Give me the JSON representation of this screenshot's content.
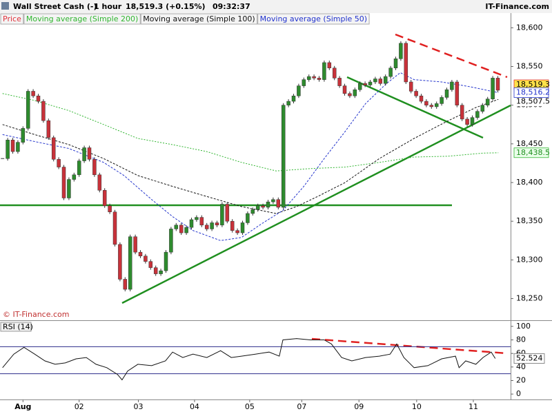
{
  "header": {
    "instrument": "Wall Street Cash (-)",
    "interval": "1 hour",
    "quote": "18,519.3 (+0.15%)",
    "time": "09:32:37",
    "brand": "IT-Finance.com",
    "watermark": "© IT-Finance.com"
  },
  "chart_data": [
    {
      "type": "candlestick",
      "xlim": [
        -0.5,
        99.5
      ],
      "ylim": [
        18222,
        18619
      ],
      "yticks": [
        {
          "value": 18250,
          "label": "18,250"
        },
        {
          "value": 18300,
          "label": "18,300"
        },
        {
          "value": 18350,
          "label": "18,350"
        },
        {
          "value": 18400,
          "label": "18,400"
        },
        {
          "value": 18450,
          "label": "18,450"
        },
        {
          "value": 18500,
          "label": "18,500"
        },
        {
          "value": 18550,
          "label": "18,550"
        },
        {
          "value": 18600,
          "label": "18,600"
        }
      ],
      "series": [
        {
          "name": "Price",
          "color": "#e0303a",
          "last_label": "18,519.3",
          "values": [
            18431,
            18455,
            18440,
            18452,
            18470,
            18518,
            18512,
            18505,
            18480,
            18458,
            18430,
            18420,
            18380,
            18404,
            18410,
            18428,
            18445,
            18430,
            18410,
            18390,
            18370,
            18362,
            18320,
            18275,
            18262,
            18330,
            18310,
            18305,
            18298,
            18290,
            18282,
            18286,
            18310,
            18340,
            18345,
            18335,
            18342,
            18352,
            18355,
            18345,
            18340,
            18348,
            18345,
            18372,
            18350,
            18338,
            18335,
            18348,
            18360,
            18365,
            18370,
            18368,
            18375,
            18378,
            18368,
            18500,
            18505,
            18512,
            18525,
            18533,
            18537,
            18535,
            18533,
            18555,
            18548,
            18535,
            18525,
            18515,
            18512,
            18520,
            18528,
            18526,
            18530,
            18534,
            18528,
            18537,
            18548,
            18560,
            18580,
            18530,
            18518,
            18512,
            18505,
            18500,
            18498,
            18502,
            18510,
            18520,
            18530,
            18500,
            18482,
            18475,
            18484,
            18492,
            18500,
            18508,
            18535,
            18519.3
          ]
        },
        {
          "name": "Moving average (Simple 200)",
          "color": "#2fb52f",
          "last_label": "18,438.5",
          "x": [
            0,
            6.3,
            13.0,
            19.8,
            26.5,
            33.3,
            40.0,
            46.8,
            53.6,
            60.3,
            67.1,
            73.8,
            80.6,
            87.3,
            94.1,
            97.1
          ],
          "values": [
            18515,
            18506,
            18493,
            18475,
            18457,
            18449,
            18440,
            18426,
            18415,
            18418,
            18420,
            18426,
            18433,
            18434,
            18438,
            18438.5
          ]
        },
        {
          "name": "Moving average (Simple 100)",
          "color": "#111111",
          "last_label": "18,507.5",
          "x": [
            0,
            6.3,
            13.0,
            19.8,
            26.5,
            33.3,
            40.0,
            46.8,
            53.6,
            57.6,
            61.7,
            67.1,
            73.8,
            80.6,
            87.3,
            92.7,
            97.1
          ],
          "values": [
            18475,
            18462,
            18449,
            18431,
            18409,
            18395,
            18382,
            18369,
            18360,
            18369,
            18382,
            18400,
            18431,
            18457,
            18480,
            18497,
            18507.5
          ]
        },
        {
          "name": "Moving average (Simple 50)",
          "color": "#2233cc",
          "last_label": "18,516.2",
          "x": [
            0,
            6.3,
            13.0,
            19.8,
            23.8,
            29.2,
            33.3,
            37.3,
            42.7,
            46.8,
            50.8,
            54.9,
            59.0,
            63.0,
            67.1,
            71.1,
            75.2,
            77.9,
            80.6,
            86.0,
            91.4,
            97.1
          ],
          "values": [
            18462,
            18453,
            18444,
            18426,
            18409,
            18378,
            18356,
            18338,
            18325,
            18329,
            18347,
            18364,
            18395,
            18431,
            18466,
            18502,
            18528,
            18542,
            18533,
            18530,
            18524,
            18516.2
          ]
        }
      ]
    },
    {
      "type": "line",
      "title": "RSI (14)",
      "xlim": [
        -0.5,
        99.5
      ],
      "ylim": [
        -8,
        108
      ],
      "yticks": [
        0,
        20,
        40,
        60,
        80,
        100
      ],
      "levels": [
        70,
        30
      ],
      "xticks": [
        {
          "value": 4.0,
          "label": "Aug"
        },
        {
          "value": 15.0,
          "label": "02"
        },
        {
          "value": 26.6,
          "label": "03"
        },
        {
          "value": 37.6,
          "label": "04"
        },
        {
          "value": 48.4,
          "label": "05"
        },
        {
          "value": 58.6,
          "label": "07"
        },
        {
          "value": 69.8,
          "label": "09"
        },
        {
          "value": 81.1,
          "label": "10"
        },
        {
          "value": 92.2,
          "label": "11"
        }
      ],
      "series": [
        {
          "color": "#111111",
          "last_label": "52.524",
          "x": [
            0,
            2.2,
            4.2,
            6.3,
            8.3,
            10.3,
            12.3,
            14.4,
            16.4,
            18.3,
            20.4,
            22.5,
            23.4,
            24.5,
            26.5,
            29.2,
            31.9,
            33.3,
            35.3,
            37.3,
            40.0,
            42.7,
            44.8,
            46.8,
            49.5,
            52.2,
            54.2,
            54.9,
            57.6,
            60.3,
            63.0,
            64.4,
            66.4,
            68.4,
            71.1,
            73.8,
            75.9,
            77.2,
            78.6,
            80.6,
            83.3,
            86.0,
            88.7,
            89.4,
            90.7,
            92.7,
            94.1,
            95.7,
            96.5
          ],
          "values": [
            39,
            59,
            69,
            59,
            49,
            44,
            46,
            52,
            54,
            44,
            39,
            29,
            21,
            34,
            44,
            42,
            49,
            62,
            54,
            59,
            54,
            64,
            54,
            56,
            59,
            62,
            56,
            80,
            82,
            80,
            80,
            74,
            54,
            49,
            54,
            56,
            59,
            74,
            54,
            39,
            42,
            52,
            56,
            39,
            49,
            44,
            54,
            62,
            52.524
          ]
        }
      ]
    }
  ]
}
